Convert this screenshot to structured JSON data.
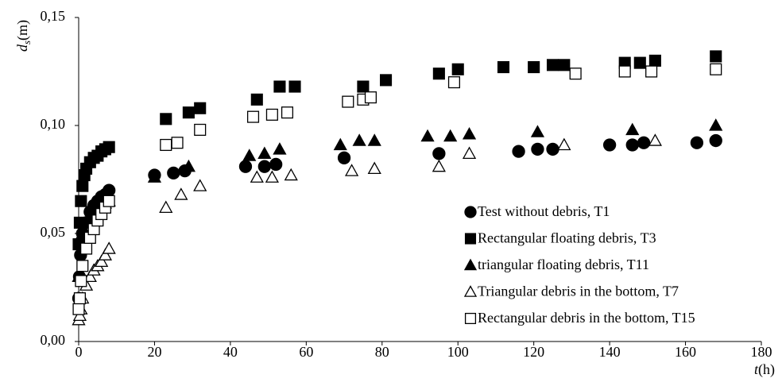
{
  "chart_data": {
    "type": "scatter",
    "ylabel": [
      "d",
      "s",
      "(m)"
    ],
    "xlabel": [
      "t",
      "(h)"
    ],
    "xlim": [
      0,
      180
    ],
    "xticks": [
      0,
      20,
      40,
      60,
      80,
      100,
      120,
      140,
      160,
      180
    ],
    "ylim": [
      0,
      0.15
    ],
    "yticks": [
      {
        "value": 0,
        "label": "0,00"
      },
      {
        "value": 0.05,
        "label": "0,05"
      },
      {
        "value": 0.1,
        "label": "0,10"
      },
      {
        "value": 0.15,
        "label": "0,15"
      }
    ],
    "legend": "lower right",
    "series": [
      {
        "name": "Test without debris, T1",
        "color": "#000000",
        "marker": "circle",
        "filled": true,
        "x": [
          0,
          0.2,
          0.5,
          1,
          2,
          3,
          4,
          5,
          6,
          7,
          8,
          20,
          25,
          28,
          44,
          49,
          52,
          70,
          95,
          116,
          121,
          125,
          140,
          146,
          149,
          163,
          168
        ],
        "values": [
          0.02,
          0.03,
          0.04,
          0.05,
          0.055,
          0.06,
          0.063,
          0.065,
          0.067,
          0.068,
          0.07,
          0.077,
          0.078,
          0.079,
          0.081,
          0.081,
          0.082,
          0.085,
          0.087,
          0.088,
          0.089,
          0.089,
          0.091,
          0.091,
          0.092,
          0.092,
          0.093
        ]
      },
      {
        "name": "Rectangular floating debris, T3",
        "color": "#000000",
        "marker": "square",
        "filled": true,
        "x": [
          0,
          0.3,
          0.6,
          1,
          1.5,
          2,
          3,
          4,
          5,
          6,
          7,
          8,
          23,
          29,
          32,
          47,
          53,
          57,
          75,
          81,
          95,
          100,
          112,
          120,
          125,
          128,
          144,
          148,
          152,
          168
        ],
        "values": [
          0.045,
          0.055,
          0.065,
          0.072,
          0.077,
          0.08,
          0.083,
          0.085,
          0.086,
          0.088,
          0.089,
          0.09,
          0.103,
          0.106,
          0.108,
          0.112,
          0.118,
          0.118,
          0.118,
          0.121,
          0.124,
          0.126,
          0.127,
          0.127,
          0.128,
          0.128,
          0.129,
          0.129,
          0.13,
          0.132
        ]
      },
      {
        "name": "triangular floating debris, T11",
        "color": "#000000",
        "marker": "triangle",
        "filled": true,
        "x": [
          0,
          0.5,
          1,
          2,
          3,
          4,
          5,
          6,
          7,
          8,
          20,
          29,
          45,
          49,
          53,
          69,
          74,
          78,
          92,
          98,
          103,
          121,
          146,
          168
        ],
        "values": [
          0.03,
          0.045,
          0.05,
          0.055,
          0.058,
          0.06,
          0.062,
          0.063,
          0.064,
          0.065,
          0.076,
          0.081,
          0.086,
          0.087,
          0.089,
          0.091,
          0.093,
          0.093,
          0.095,
          0.095,
          0.096,
          0.097,
          0.098,
          0.1
        ]
      },
      {
        "name": "Triangular debris in the bottom, T7",
        "color": "#000000",
        "marker": "triangle",
        "filled": false,
        "x": [
          0,
          0.3,
          0.6,
          1,
          2,
          3,
          4,
          5,
          6,
          7,
          8,
          23,
          27,
          32,
          47,
          51,
          56,
          72,
          78,
          95,
          103,
          128,
          152
        ],
        "values": [
          0.01,
          0.012,
          0.015,
          0.02,
          0.026,
          0.03,
          0.033,
          0.035,
          0.037,
          0.04,
          0.043,
          0.062,
          0.068,
          0.072,
          0.076,
          0.076,
          0.077,
          0.079,
          0.08,
          0.081,
          0.087,
          0.091,
          0.093
        ]
      },
      {
        "name": "Rectangular debris in the bottom, T15",
        "color": "#000000",
        "marker": "square",
        "filled": false,
        "x": [
          0,
          0.3,
          0.6,
          1,
          2,
          3,
          4,
          5,
          6,
          7,
          8,
          23,
          26,
          32,
          46,
          51,
          55,
          71,
          75,
          77,
          99,
          131,
          144,
          151,
          168
        ],
        "values": [
          0.015,
          0.02,
          0.028,
          0.035,
          0.043,
          0.048,
          0.052,
          0.056,
          0.059,
          0.062,
          0.065,
          0.091,
          0.092,
          0.098,
          0.104,
          0.105,
          0.106,
          0.111,
          0.112,
          0.113,
          0.12,
          0.124,
          0.125,
          0.125,
          0.126
        ]
      }
    ]
  }
}
